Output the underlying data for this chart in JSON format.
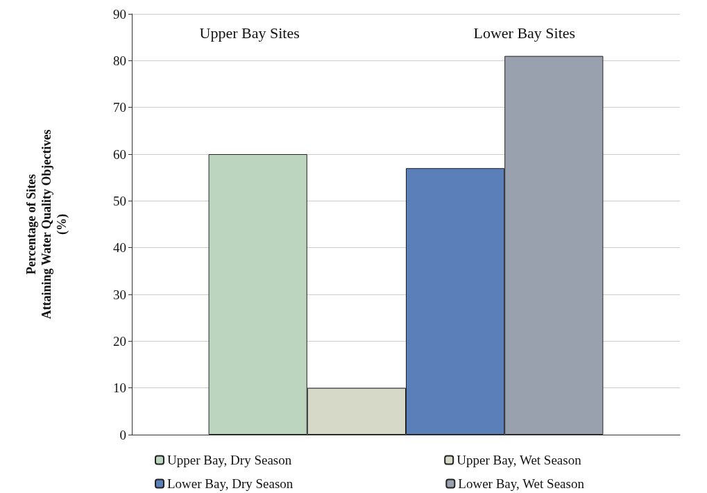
{
  "chart_data": {
    "type": "bar",
    "ylabel": "Percentage of Sites\nAttaining Water Quality Objectives\n(%)",
    "categories": [
      null
    ],
    "series": [
      {
        "name": "Upper Bay, Dry Season",
        "color": "#bcd5bf",
        "values": [
          60
        ]
      },
      {
        "name": "Upper Bay, Wet Season",
        "color": "#d6d8c8",
        "values": [
          10
        ]
      },
      {
        "name": "Lower Bay, Dry Season",
        "color": "#5b7fb9",
        "values": [
          57
        ]
      },
      {
        "name": "Lower Bay, Wet Season",
        "color": "#9aa1ae",
        "values": [
          81
        ]
      }
    ],
    "ylim": [
      0,
      90
    ],
    "yticks": [
      0,
      10,
      20,
      30,
      40,
      50,
      60,
      70,
      80,
      90
    ],
    "grid": "y",
    "legend": "bottom",
    "annotations": [
      "Upper Bay Sites",
      "Lower Bay Sites"
    ]
  }
}
